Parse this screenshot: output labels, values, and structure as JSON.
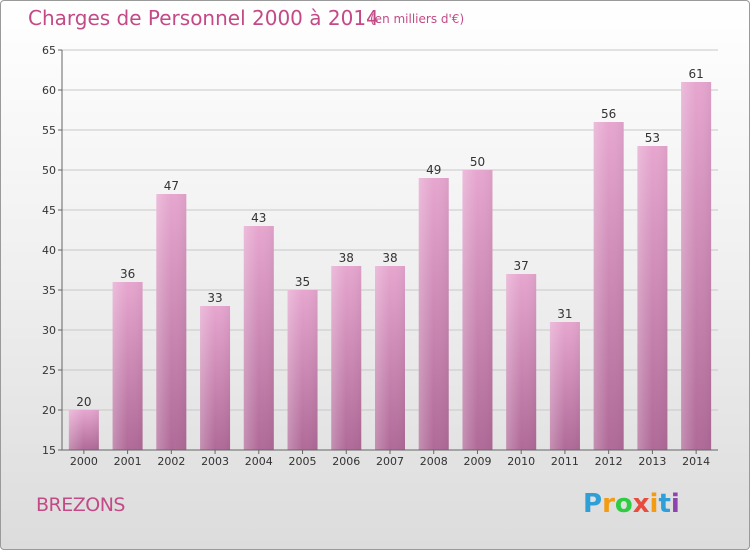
{
  "header": {
    "title": "Charges de Personnel 2000 à 2014",
    "subtitle": "(en milliers d'€)"
  },
  "footer": {
    "commune": "BREZONS",
    "logo_letters": [
      "P",
      "r",
      "o",
      "x",
      "i",
      "t",
      "i"
    ],
    "logo_colors": [
      "#2f9fd8",
      "#f39c12",
      "#2ecc40",
      "#e74c3c",
      "#f39c12",
      "#2f9fd8",
      "#8e44ad"
    ]
  },
  "colors": {
    "bar_top": "#e6a6cf",
    "bar_bottom": "#b06a98",
    "accent": "#c44a87"
  },
  "chart_data": {
    "type": "bar",
    "title": "Charges de Personnel 2000 à 2014",
    "subtitle": "(en milliers d'€)",
    "categories": [
      "2000",
      "2001",
      "2002",
      "2003",
      "2004",
      "2005",
      "2006",
      "2007",
      "2008",
      "2009",
      "2010",
      "2011",
      "2012",
      "2013",
      "2014"
    ],
    "values": [
      20,
      36,
      47,
      33,
      43,
      35,
      38,
      38,
      49,
      50,
      37,
      31,
      56,
      53,
      61
    ],
    "ylim": [
      15,
      65
    ],
    "yticks": [
      15,
      20,
      25,
      30,
      35,
      40,
      45,
      50,
      55,
      60,
      65
    ],
    "grid": true
  }
}
